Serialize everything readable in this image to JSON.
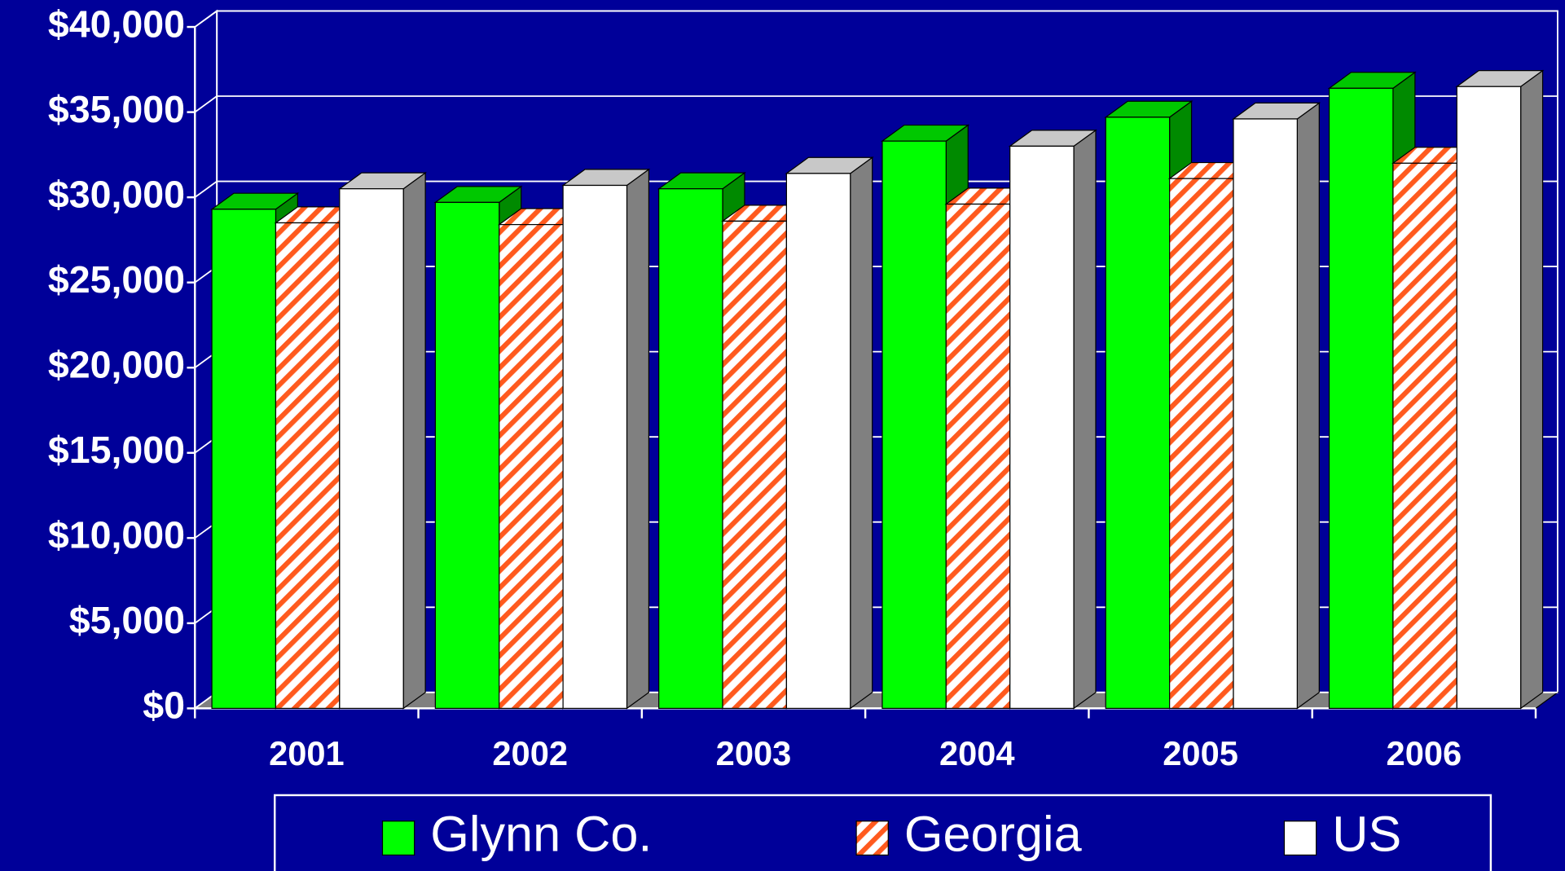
{
  "chart_data": {
    "type": "bar3d",
    "categories": [
      "2001",
      "2002",
      "2003",
      "2004",
      "2005",
      "2006"
    ],
    "series": [
      {
        "name": "Glynn Co.",
        "color": "#00ff00",
        "values": [
          29300,
          29700,
          30500,
          33300,
          34700,
          36400
        ]
      },
      {
        "name": "Georgia",
        "color": "#ff5a1e",
        "values": [
          28500,
          28400,
          28600,
          29600,
          31100,
          32000
        ]
      },
      {
        "name": "US",
        "color": "#ffffff",
        "values": [
          30500,
          30700,
          31400,
          33000,
          34600,
          36500
        ]
      }
    ],
    "ylim": [
      0,
      40000
    ],
    "yticks": [
      {
        "value": 0,
        "label": "$0"
      },
      {
        "value": 5000,
        "label": "$5,000"
      },
      {
        "value": 10000,
        "label": "$10,000"
      },
      {
        "value": 15000,
        "label": "$15,000"
      },
      {
        "value": 20000,
        "label": "$20,000"
      },
      {
        "value": 25000,
        "label": "$25,000"
      },
      {
        "value": 30000,
        "label": "$30,000"
      },
      {
        "value": 35000,
        "label": "$35,000"
      },
      {
        "value": 40000,
        "label": "$40,000"
      }
    ],
    "grid": true,
    "legend": "bottom"
  }
}
